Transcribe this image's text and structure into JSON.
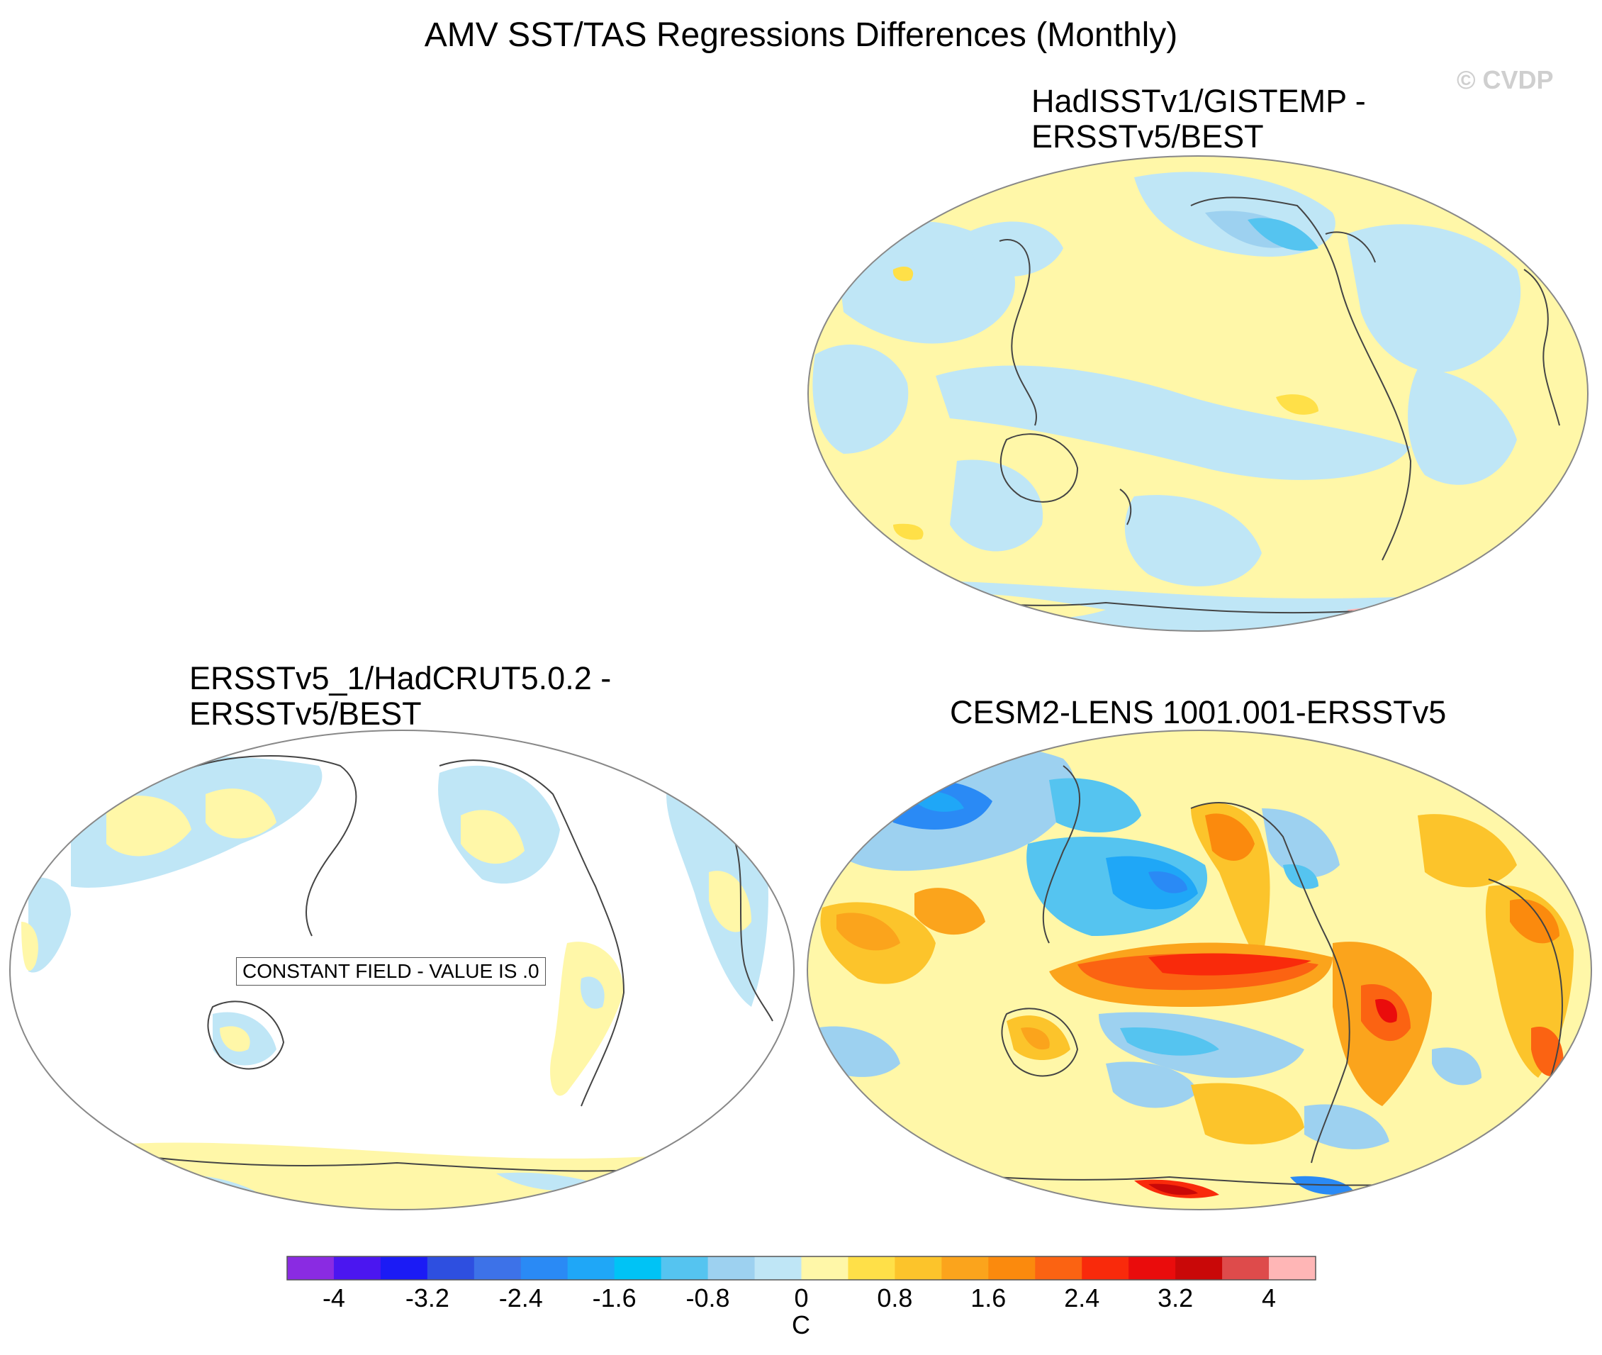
{
  "title": "AMV SST/TAS Regressions Differences (Monthly)",
  "watermark": "© CVDP",
  "panels": [
    {
      "id": "top-right",
      "title_line1": "HadISSTv1/GISTEMP -",
      "title_line2": "ERSSTv5/BEST"
    },
    {
      "id": "bottom-left",
      "title_line1": "ERSSTv5_1/HadCRUT5.0.2 -",
      "title_line2": "ERSSTv5/BEST",
      "note": "CONSTANT FIELD - VALUE IS .0"
    },
    {
      "id": "bottom-right",
      "title_line1": "CESM2-LENS 1001.001-ERSSTv5",
      "title_line2": ""
    }
  ],
  "colorbar": {
    "units": "C",
    "colors": [
      "#8a2be2",
      "#4b16f0",
      "#1b1bf5",
      "#2e4fe0",
      "#3d72e8",
      "#2a8af5",
      "#1fa7f7",
      "#00c3f5",
      "#55c4f0",
      "#9dd1f0",
      "#bfe6f6",
      "#fff7a8",
      "#ffe048",
      "#fcc42b",
      "#fba41c",
      "#fb8a0d",
      "#fb6312",
      "#f92a0b",
      "#ea0c0c",
      "#c90808",
      "#de4b4b",
      "#ffb6b6"
    ],
    "ticks": [
      "-4",
      "-3.2",
      "-2.4",
      "-1.6",
      "-0.8",
      "0",
      "0.8",
      "1.6",
      "2.4",
      "3.2",
      "4"
    ]
  }
}
